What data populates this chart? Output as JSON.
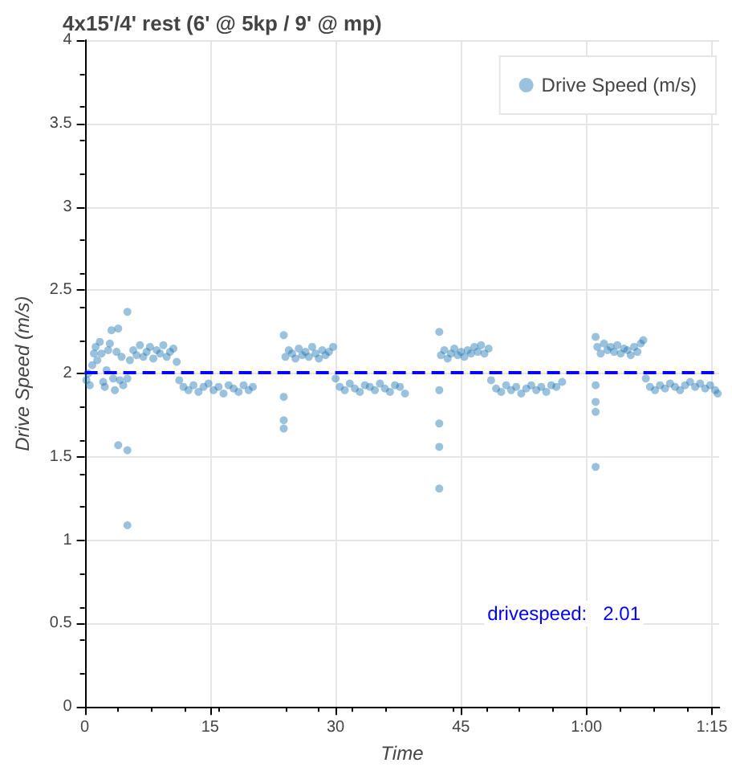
{
  "chart_data": {
    "type": "scatter",
    "title": "4x15'/4' rest (6' @ 5kp / 9' @ mp)",
    "xlabel": "Time",
    "ylabel": "Drive Speed (m/s)",
    "xlim": [
      0,
      75.9
    ],
    "xticks": [
      0,
      15,
      30,
      45,
      {
        "value": 60,
        "label": "1:00"
      },
      {
        "value": 75,
        "label": "1:15"
      }
    ],
    "ylim": [
      0,
      4
    ],
    "yticks": [
      0,
      0.5,
      1,
      1.5,
      2,
      2.5,
      3,
      3.5,
      4
    ],
    "grid": true,
    "legend": "top right",
    "marker": "circle",
    "ref_lines": [
      {
        "axis": "y",
        "value": 2.01,
        "label": "drivespeed:   2.01",
        "color": "#0000ff",
        "line_style": "dashed"
      }
    ],
    "series": [
      {
        "name": "Drive Speed (m/s)",
        "color": "#1f77b4",
        "x": [
          0.2,
          0.4,
          0.6,
          0.9,
          1.1,
          1.3,
          1.5,
          1.8,
          2.0,
          2.2,
          2.4,
          2.6,
          2.8,
          3.0,
          3.2,
          3.4,
          3.6,
          3.8,
          4.0,
          4.0,
          4.2,
          4.4,
          4.6,
          5.1,
          5.1,
          5.1,
          5.1,
          5.4,
          5.8,
          6.2,
          6.6,
          7.0,
          7.4,
          7.8,
          8.2,
          8.6,
          9.0,
          9.4,
          9.8,
          10.2,
          10.6,
          11.0,
          11.3,
          11.8,
          12.4,
          13.0,
          13.6,
          14.2,
          14.8,
          15.4,
          16.0,
          16.6,
          17.2,
          17.8,
          18.4,
          19.0,
          19.6,
          20.1,
          23.8,
          23.8,
          23.8,
          23.8,
          24.0,
          24.4,
          24.8,
          25.2,
          25.6,
          26.0,
          26.4,
          26.8,
          27.2,
          27.6,
          28.0,
          28.4,
          28.8,
          29.2,
          29.7,
          30.0,
          30.5,
          31.1,
          31.7,
          32.3,
          32.9,
          33.5,
          34.1,
          34.7,
          35.3,
          35.9,
          36.5,
          37.1,
          37.7,
          38.3,
          42.4,
          42.4,
          42.4,
          42.4,
          42.4,
          42.6,
          43.0,
          43.4,
          43.8,
          44.2,
          44.6,
          45.0,
          45.4,
          45.8,
          46.2,
          46.6,
          47.0,
          47.4,
          47.8,
          48.3,
          48.6,
          49.2,
          49.8,
          50.4,
          51.0,
          51.6,
          52.2,
          52.8,
          53.4,
          54.0,
          54.6,
          55.2,
          55.8,
          56.4,
          57.1,
          61.1,
          61.1,
          61.1,
          61.1,
          61.1,
          61.3,
          61.7,
          62.1,
          62.5,
          62.9,
          63.3,
          63.7,
          64.1,
          64.5,
          64.9,
          65.3,
          65.7,
          66.1,
          66.5,
          66.8,
          67.1,
          67.6,
          68.2,
          68.8,
          69.4,
          70.0,
          70.6,
          71.2,
          71.8,
          72.4,
          73.0,
          73.6,
          74.2,
          74.8,
          75.4,
          75.7
        ],
        "values": [
          1.96,
          2.0,
          1.93,
          2.05,
          2.12,
          2.16,
          2.08,
          2.19,
          2.12,
          1.95,
          1.92,
          2.02,
          2.14,
          2.18,
          2.26,
          1.97,
          1.9,
          2.13,
          2.27,
          1.57,
          1.96,
          2.1,
          1.93,
          2.37,
          1.54,
          1.09,
          1.97,
          2.08,
          2.14,
          2.11,
          2.17,
          2.1,
          2.13,
          2.16,
          2.09,
          2.14,
          2.12,
          2.17,
          2.1,
          2.13,
          2.15,
          2.07,
          1.96,
          1.92,
          1.9,
          1.93,
          1.89,
          1.92,
          1.94,
          1.9,
          1.92,
          1.88,
          1.93,
          1.91,
          1.89,
          1.93,
          1.9,
          1.92,
          2.23,
          1.86,
          1.72,
          1.67,
          2.1,
          2.14,
          2.12,
          2.09,
          2.15,
          2.11,
          2.13,
          2.1,
          2.16,
          2.12,
          2.09,
          2.14,
          2.11,
          2.13,
          2.16,
          1.97,
          1.92,
          1.9,
          1.94,
          1.91,
          1.89,
          1.93,
          1.92,
          1.9,
          1.94,
          1.91,
          1.89,
          1.93,
          1.92,
          1.88,
          2.25,
          1.9,
          1.7,
          1.56,
          1.31,
          2.11,
          2.14,
          2.09,
          2.12,
          2.15,
          2.11,
          2.13,
          2.1,
          2.14,
          2.12,
          2.16,
          2.13,
          2.17,
          2.12,
          2.15,
          1.96,
          1.91,
          1.89,
          1.93,
          1.9,
          1.92,
          1.88,
          1.91,
          1.93,
          1.9,
          1.92,
          1.89,
          1.93,
          1.92,
          1.95,
          2.22,
          1.93,
          1.83,
          1.77,
          1.44,
          2.16,
          2.12,
          2.18,
          2.14,
          2.16,
          2.13,
          2.17,
          2.12,
          2.15,
          2.14,
          2.11,
          2.16,
          2.13,
          2.18,
          2.2,
          1.97,
          1.92,
          1.9,
          1.93,
          1.91,
          1.94,
          1.92,
          1.9,
          1.93,
          1.95,
          1.92,
          1.94,
          1.91,
          1.93,
          1.9,
          1.88
        ]
      }
    ]
  }
}
